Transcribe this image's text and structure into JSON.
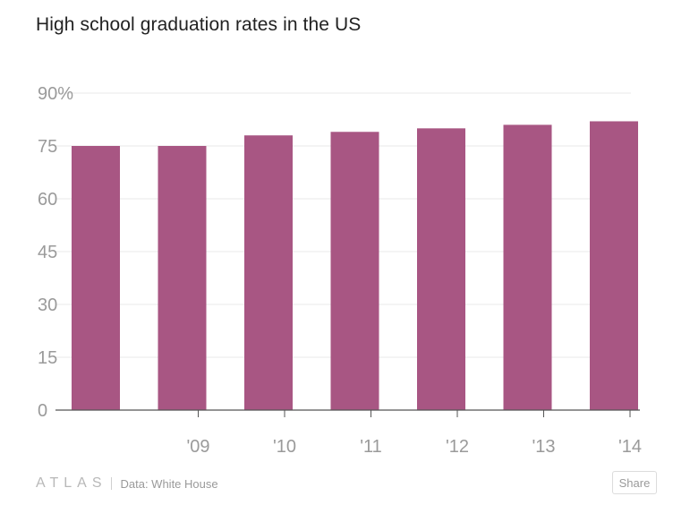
{
  "title": "High school graduation rates in the US",
  "footer": {
    "logo": "ATLAS",
    "source": "Data: White House",
    "share_label": "Share"
  },
  "colors": {
    "bar": "#a85683",
    "grid": "#e9e9e9",
    "axis": "#555555",
    "tick_text": "#9a9a9a"
  },
  "chart_data": {
    "type": "bar",
    "title": "High school graduation rates in the US",
    "xlabel": "",
    "ylabel": "",
    "categories": [
      "",
      "'09",
      "'10",
      "'11",
      "'12",
      "'13",
      "'14"
    ],
    "values": [
      75,
      75,
      78,
      79,
      80,
      81,
      82
    ],
    "ylim": [
      0,
      90
    ],
    "yticks": [
      0,
      15,
      30,
      45,
      60,
      75,
      90
    ],
    "ytick_labels": [
      "0",
      "15",
      "30",
      "45",
      "60",
      "75",
      "90%"
    ],
    "grid": true
  }
}
